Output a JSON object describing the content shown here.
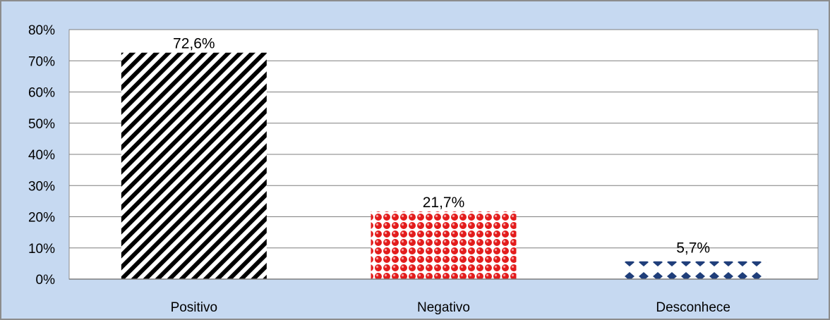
{
  "chart_data": {
    "type": "bar",
    "categories": [
      "Positivo",
      "Negativo",
      "Desconhece"
    ],
    "values": [
      72.6,
      21.7,
      5.7
    ],
    "data_labels": [
      "72,6%",
      "21,7%",
      "5,7%"
    ],
    "ylim": [
      0,
      80
    ],
    "yticks": [
      0,
      10,
      20,
      30,
      40,
      50,
      60,
      70,
      80
    ],
    "ytick_labels": [
      "0%",
      "10%",
      "20%",
      "30%",
      "40%",
      "50%",
      "60%",
      "70%",
      "80%"
    ],
    "grid": true,
    "legend": "none",
    "bar_fills": [
      "diagonal-stripes-black",
      "red-dots",
      "navy-diamonds"
    ]
  },
  "colors": {
    "background": "#c6d9f1",
    "plot_area": "#ffffff",
    "stripe": "#000000",
    "dots": "#e31c1c",
    "diamonds": "#1f3e7a",
    "gridline": "#7f7f7f"
  }
}
